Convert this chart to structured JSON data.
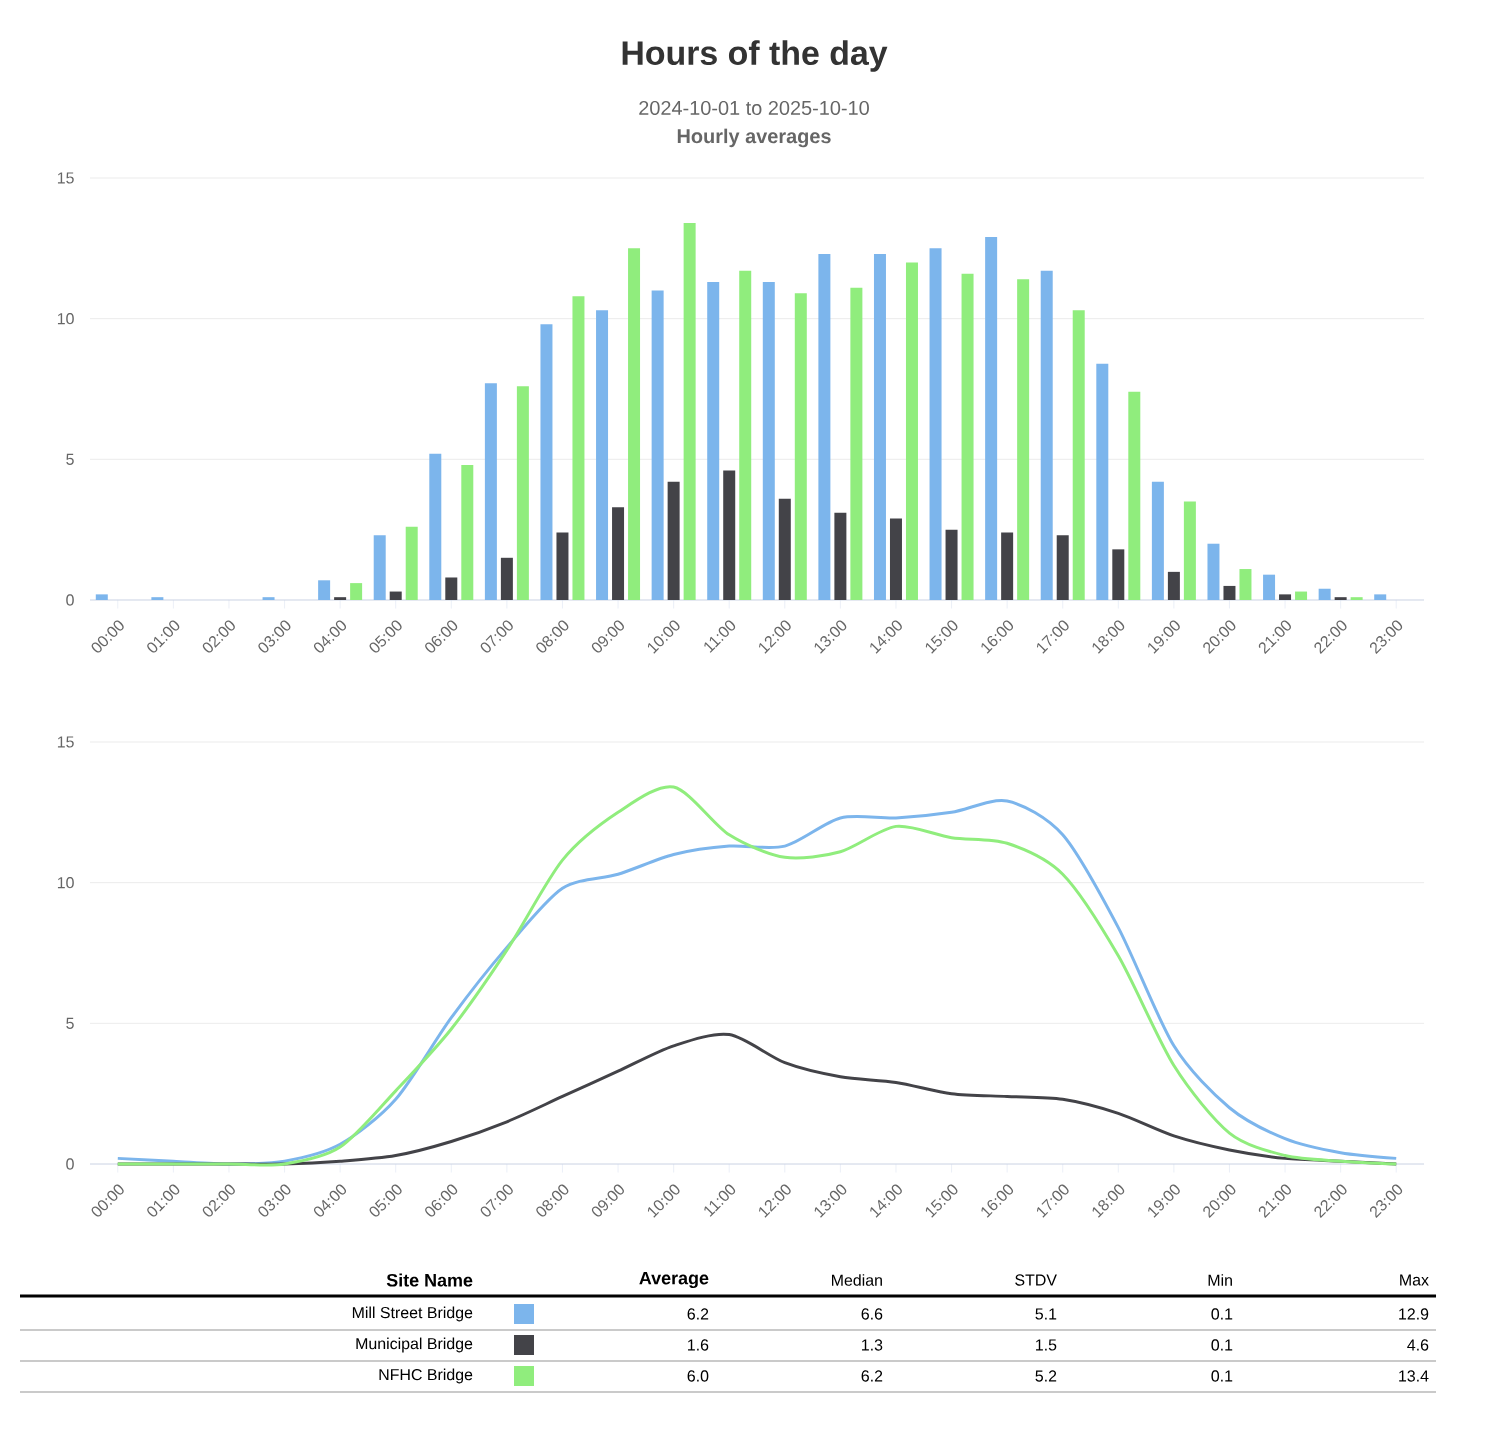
{
  "chart_data": [
    {
      "type": "bar",
      "title": "Hours of the day",
      "subtitle": "2024-10-01 to 2025-10-10",
      "annotations": [
        "Hourly averages"
      ],
      "categories": [
        "00:00",
        "01:00",
        "02:00",
        "03:00",
        "04:00",
        "05:00",
        "06:00",
        "07:00",
        "08:00",
        "09:00",
        "10:00",
        "11:00",
        "12:00",
        "13:00",
        "14:00",
        "15:00",
        "16:00",
        "17:00",
        "18:00",
        "19:00",
        "20:00",
        "21:00",
        "22:00",
        "23:00"
      ],
      "series": [
        {
          "color": "#7cb5ec",
          "values": [
            0.2,
            0.1,
            0.0,
            0.1,
            0.7,
            2.3,
            5.2,
            7.7,
            9.8,
            10.3,
            11.0,
            11.3,
            11.3,
            12.3,
            12.3,
            12.5,
            12.9,
            11.7,
            8.4,
            4.2,
            2.0,
            0.9,
            0.4,
            0.2
          ]
        },
        {
          "color": "#434348",
          "values": [
            0.0,
            0.0,
            0.0,
            0.0,
            0.1,
            0.3,
            0.8,
            1.5,
            2.4,
            3.3,
            4.2,
            4.6,
            3.6,
            3.1,
            2.9,
            2.5,
            2.4,
            2.3,
            1.8,
            1.0,
            0.5,
            0.2,
            0.1,
            0.0
          ]
        },
        {
          "color": "#90ed7d",
          "values": [
            0.0,
            0.0,
            0.0,
            0.0,
            0.6,
            2.6,
            4.8,
            7.6,
            10.8,
            12.5,
            13.4,
            11.7,
            10.9,
            11.1,
            12.0,
            11.6,
            11.4,
            10.3,
            7.4,
            3.5,
            1.1,
            0.3,
            0.1,
            0.0
          ]
        }
      ],
      "ylim": [
        0,
        15
      ],
      "yticks": [
        0,
        5,
        10,
        15
      ],
      "grid": "y"
    },
    {
      "type": "line",
      "categories": [
        "00:00",
        "01:00",
        "02:00",
        "03:00",
        "04:00",
        "05:00",
        "06:00",
        "07:00",
        "08:00",
        "09:00",
        "10:00",
        "11:00",
        "12:00",
        "13:00",
        "14:00",
        "15:00",
        "16:00",
        "17:00",
        "18:00",
        "19:00",
        "20:00",
        "21:00",
        "22:00",
        "23:00"
      ],
      "series": [
        {
          "color": "#7cb5ec",
          "values": [
            0.2,
            0.1,
            0.0,
            0.1,
            0.7,
            2.3,
            5.2,
            7.7,
            9.8,
            10.3,
            11.0,
            11.3,
            11.3,
            12.3,
            12.3,
            12.5,
            12.9,
            11.7,
            8.4,
            4.2,
            2.0,
            0.9,
            0.4,
            0.2
          ]
        },
        {
          "color": "#434348",
          "values": [
            0.0,
            0.0,
            0.0,
            0.0,
            0.1,
            0.3,
            0.8,
            1.5,
            2.4,
            3.3,
            4.2,
            4.6,
            3.6,
            3.1,
            2.9,
            2.5,
            2.4,
            2.3,
            1.8,
            1.0,
            0.5,
            0.2,
            0.1,
            0.0
          ]
        },
        {
          "color": "#90ed7d",
          "values": [
            0.0,
            0.0,
            0.0,
            0.0,
            0.6,
            2.6,
            4.8,
            7.6,
            10.8,
            12.5,
            13.4,
            11.7,
            10.9,
            11.1,
            12.0,
            11.6,
            11.4,
            10.3,
            7.4,
            3.5,
            1.1,
            0.3,
            0.1,
            0.0
          ]
        }
      ],
      "ylim": [
        0,
        15
      ],
      "yticks": [
        0,
        5,
        10,
        15
      ],
      "grid": "y"
    },
    {
      "type": "other",
      "legend_title": "Site Name",
      "categories": [
        "Mill Street Bridge",
        "Municipal Bridge",
        "NFHC Bridge"
      ],
      "colors": [
        "#7cb5ec",
        "#434348",
        "#90ed7d"
      ],
      "series": [
        {
          "name": "Average",
          "values": [
            6.2,
            1.6,
            6.0
          ],
          "value_labels": [
            "6.2",
            "1.6",
            "6.0"
          ]
        },
        {
          "name": "Median",
          "values": [
            6.6,
            1.3,
            6.2
          ],
          "value_labels": [
            "6.6",
            "1.3",
            "6.2"
          ]
        },
        {
          "name": "STDV",
          "values": [
            5.1,
            1.5,
            5.2
          ],
          "value_labels": [
            "5.1",
            "1.5",
            "5.2"
          ]
        },
        {
          "name": "Min",
          "values": [
            0.1,
            0.1,
            0.1
          ],
          "value_labels": [
            "0.1",
            "0.1",
            "0.1"
          ]
        },
        {
          "name": "Max",
          "values": [
            12.9,
            4.6,
            13.4
          ],
          "value_labels": [
            "12.9",
            "4.6",
            "13.4"
          ]
        }
      ]
    }
  ]
}
